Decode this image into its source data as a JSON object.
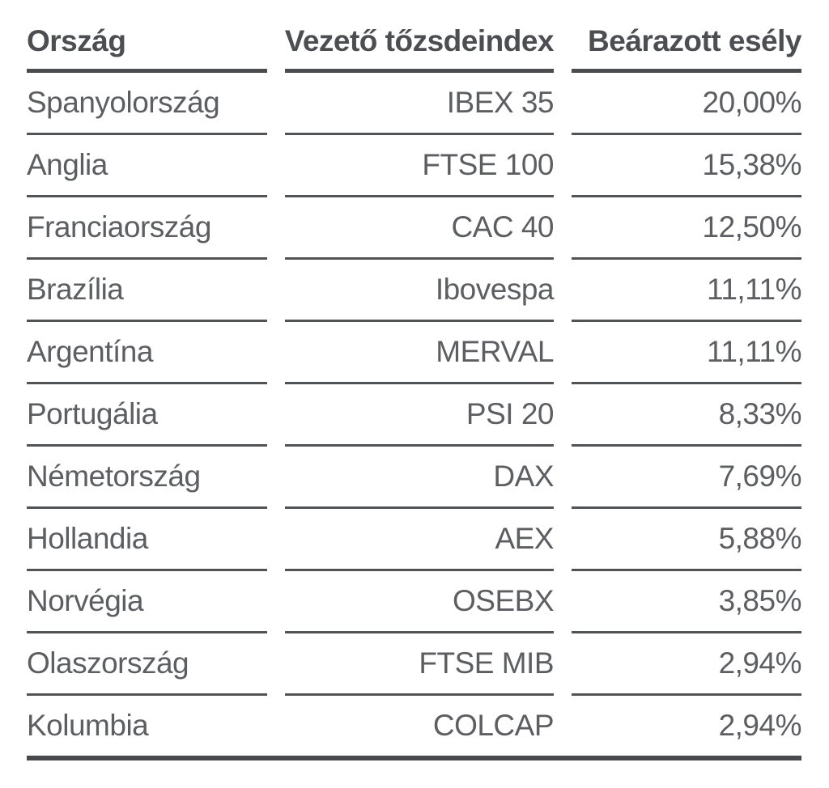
{
  "table": {
    "columns": {
      "country": "Ország",
      "index": "Vezető tőzsdeindex",
      "chance": "Beárazott esély"
    },
    "rows": [
      {
        "country": "Spanyolország",
        "index": "IBEX 35",
        "chance": "20,00%"
      },
      {
        "country": "Anglia",
        "index": "FTSE 100",
        "chance": "15,38%"
      },
      {
        "country": "Franciaország",
        "index": "CAC 40",
        "chance": "12,50%"
      },
      {
        "country": "Brazília",
        "index": "Ibovespa",
        "chance": "11,11%"
      },
      {
        "country": "Argentína",
        "index": "MERVAL",
        "chance": "11,11%"
      },
      {
        "country": "Portugália",
        "index": "PSI 20",
        "chance": "8,33%"
      },
      {
        "country": "Németország",
        "index": "DAX",
        "chance": "7,69%"
      },
      {
        "country": "Hollandia",
        "index": "AEX",
        "chance": "5,88%"
      },
      {
        "country": "Norvégia",
        "index": "OSEBX",
        "chance": "3,85%"
      },
      {
        "country": "Olaszország",
        "index": "FTSE MIB",
        "chance": "2,94%"
      },
      {
        "country": "Kolumbia",
        "index": "COLCAP",
        "chance": "2,94%"
      }
    ]
  },
  "chart_data": {
    "type": "table",
    "title": "",
    "columns": [
      "Ország",
      "Vezető tőzsdeindex",
      "Beárazott esély"
    ],
    "rows": [
      [
        "Spanyolország",
        "IBEX 35",
        "20,00%"
      ],
      [
        "Anglia",
        "FTSE 100",
        "15,38%"
      ],
      [
        "Franciaország",
        "CAC 40",
        "12,50%"
      ],
      [
        "Brazília",
        "Ibovespa",
        "11,11%"
      ],
      [
        "Argentína",
        "MERVAL",
        "11,11%"
      ],
      [
        "Portugália",
        "PSI 20",
        "8,33%"
      ],
      [
        "Németország",
        "DAX",
        "7,69%"
      ],
      [
        "Hollandia",
        "AEX",
        "5,88%"
      ],
      [
        "Norvégia",
        "OSEBX",
        "3,85%"
      ],
      [
        "Olaszország",
        "FTSE MIB",
        "2,94%"
      ],
      [
        "Kolumbia",
        "COLCAP",
        "2,94%"
      ]
    ],
    "chance_values_percent": [
      20.0,
      15.38,
      12.5,
      11.11,
      11.11,
      8.33,
      7.69,
      5.88,
      3.85,
      2.94,
      2.94
    ]
  },
  "colors": {
    "background": "#ffffff",
    "header_text": "#4d4e52",
    "body_text": "#5d5e61",
    "header_rule": "#4b4c4e",
    "row_rule": "#525355",
    "bottom_rule": "#48494b"
  }
}
